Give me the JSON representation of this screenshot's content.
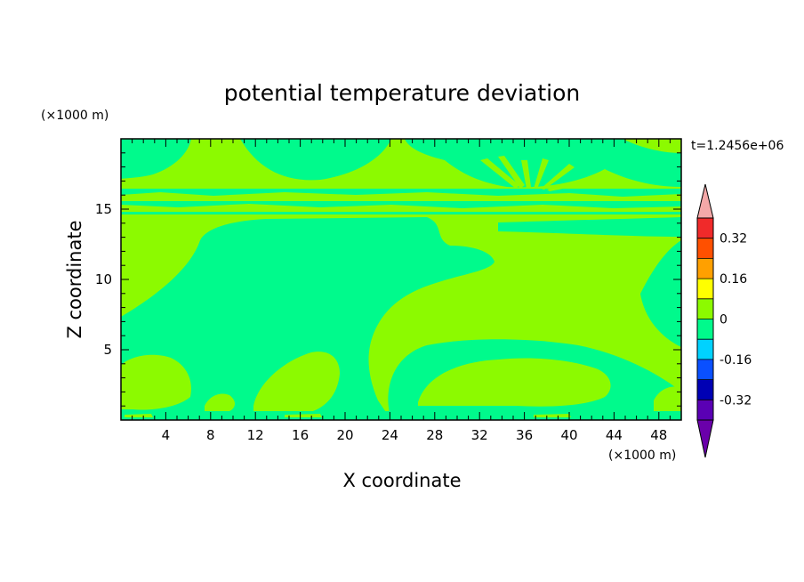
{
  "chart_data": {
    "type": "heatmap",
    "title": "potential temperature deviation",
    "xlabel": "X coordinate",
    "ylabel": "Z coordinate",
    "x_unit": "(×1000 m)",
    "y_unit": "(×1000 m)",
    "time_label": "t=1.2456e+06",
    "xlim": [
      0,
      50
    ],
    "ylim": [
      0,
      20
    ],
    "x_ticks": [
      4,
      8,
      12,
      16,
      20,
      24,
      28,
      32,
      36,
      40,
      44,
      48
    ],
    "y_ticks": [
      5,
      10,
      15
    ],
    "colorbar": {
      "levels": [
        -0.4,
        -0.32,
        -0.24,
        -0.16,
        -0.08,
        0,
        0.08,
        0.16,
        0.24,
        0.32,
        0.4
      ],
      "tick_labels": [
        "-0.32",
        "-0.16",
        "0",
        "0.16",
        "0.32"
      ],
      "tick_values": [
        -0.32,
        -0.16,
        0,
        0.16,
        0.32
      ],
      "colors": [
        "#5a00b4",
        "#0000b4",
        "#0a50ff",
        "#00d2ff",
        "#00fa8c",
        "#8cfa00",
        "#ffff00",
        "#ffa000",
        "#ff5000",
        "#f02a2a"
      ],
      "under_color": "#6a00aa",
      "over_color": "#f4a8a8"
    },
    "field": {
      "background_band": "0 to 0.08",
      "regions_band": "-0.08 to 0",
      "regions": [
        {
          "x": [
            0,
            50
          ],
          "z": [
            15.6,
            16.3
          ]
        },
        {
          "x": [
            0,
            50
          ],
          "z": [
            14.6,
            15.0
          ]
        },
        {
          "x": [
            2,
            27
          ],
          "z": [
            0.3,
            14.0
          ]
        },
        {
          "x": [
            23,
            36
          ],
          "z": [
            0.3,
            8.0
          ]
        },
        {
          "x": [
            35,
            48
          ],
          "z": [
            17.0,
            19.8
          ]
        },
        {
          "x": [
            13,
            25
          ],
          "z": [
            16.5,
            20.0
          ]
        }
      ]
    }
  }
}
